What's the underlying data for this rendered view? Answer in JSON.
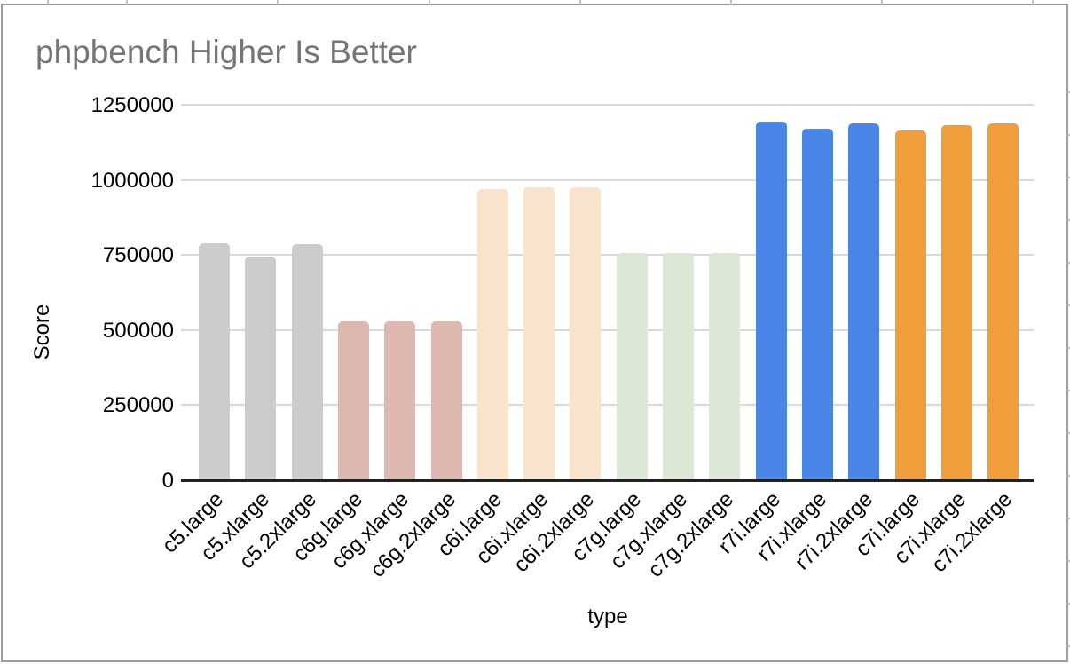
{
  "chart_data": {
    "type": "bar",
    "title": "phpbench Higher Is Better",
    "xlabel": "type",
    "ylabel": "Score",
    "categories": [
      "c5.large",
      "c5.xlarge",
      "c5.2xlarge",
      "c6g.large",
      "c6g.xlarge",
      "c6g.2xlarge",
      "c6i.large",
      "c6i.xlarge",
      "c6i.2xlarge",
      "c7g.large",
      "c7g.xlarge",
      "c7g.2xlarge",
      "r7i.large",
      "r7i.xlarge",
      "r7i.2xlarge",
      "c7i.large",
      "c7i.xlarge",
      "c7i.2xlarge"
    ],
    "values": [
      790000,
      745000,
      785000,
      530000,
      530000,
      530000,
      970000,
      976000,
      976000,
      757000,
      757000,
      756000,
      1194000,
      1170000,
      1188000,
      1163000,
      1181000,
      1187000
    ],
    "bar_colors": [
      "#cccccc",
      "#cccccc",
      "#cccccc",
      "#dcb8b0",
      "#dcb8b0",
      "#dcb8b0",
      "#f8e3cc",
      "#f8e3cc",
      "#f8e3cc",
      "#dce7d5",
      "#dce7d5",
      "#dce7d5",
      "#4a86e8",
      "#4a86e8",
      "#4a86e8",
      "#f09d3b",
      "#f09d3b",
      "#f09d3b"
    ],
    "group_colors": {
      "c5": "#cccccc",
      "c6g": "#dcb8b0",
      "c6i": "#f8e3cc",
      "c7g": "#dce7d5",
      "r7i": "#4a86e8",
      "c7i": "#f09d3b"
    },
    "yticks": [
      0,
      250000,
      500000,
      750000,
      1000000,
      1250000
    ],
    "ytick_labels": [
      "0",
      "250000",
      "500000",
      "750000",
      "1000000",
      "1250000"
    ],
    "ylim": [
      0,
      1250000
    ],
    "grid": true,
    "legend_position": "none",
    "title_color": "#757575",
    "grid_color": "#d9d9d9",
    "axis_line_color": "#212121",
    "frame_border_color": "#9e9e9e",
    "label_color": "#000000"
  }
}
